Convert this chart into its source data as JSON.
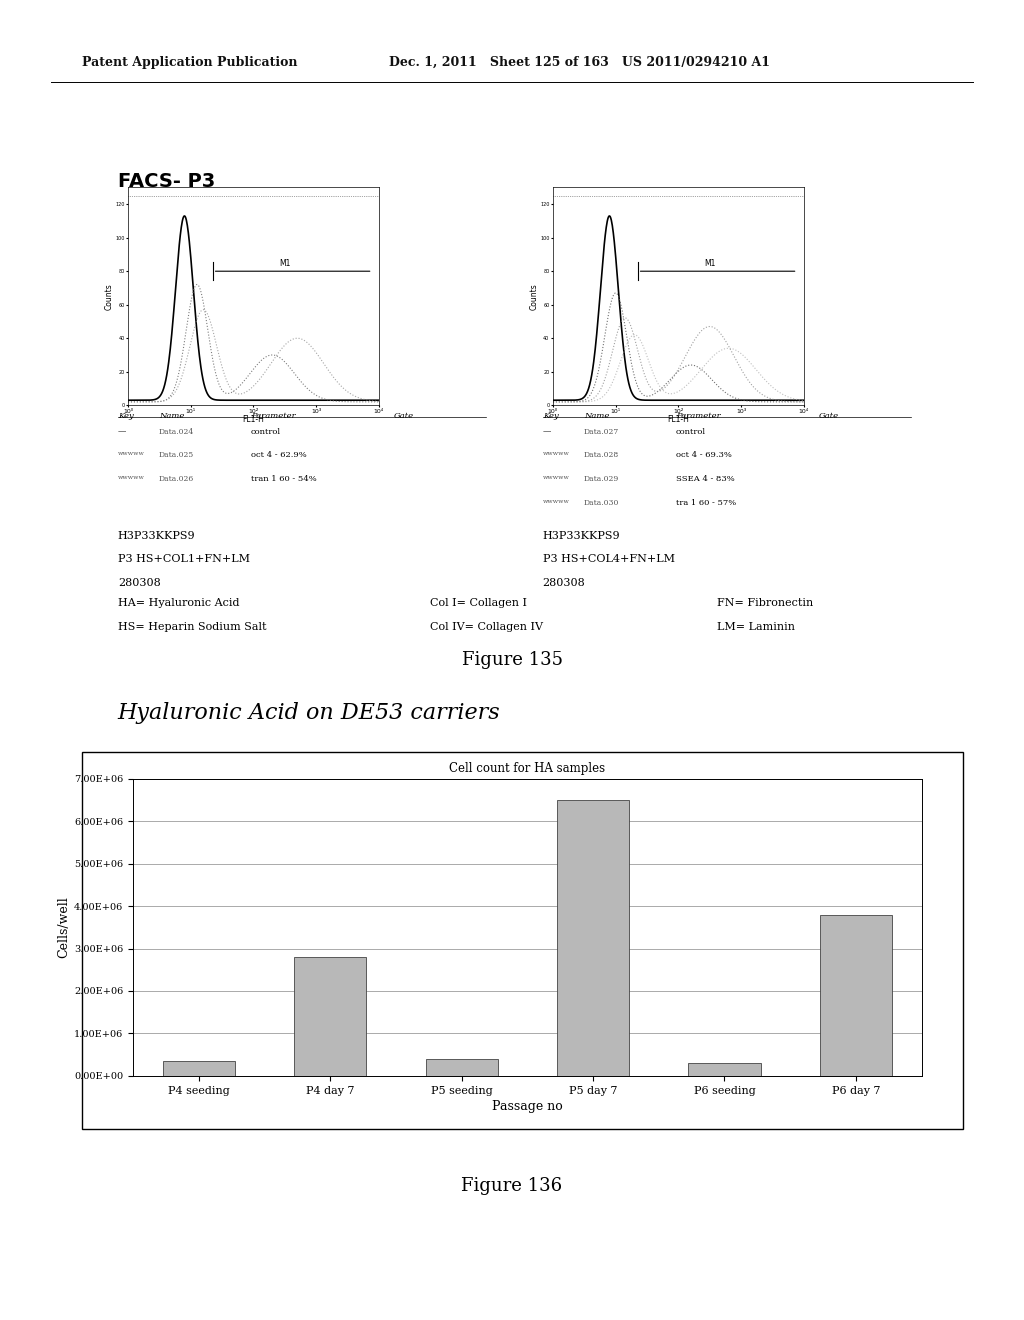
{
  "page_header_left": "Patent Application Publication",
  "page_header_mid": "Dec. 1, 2011   Sheet 125 of 163   US 2011/0294210 A1",
  "facs_title": "FACS- P3",
  "figure135_caption": "Figure 135",
  "figure136_caption": "Figure 136",
  "section_title": "Hyaluronic Acid on DE53 carriers",
  "chart_title": "Cell count for HA samples",
  "xlabel": "Passage no",
  "ylabel": "Cells/well",
  "categories": [
    "P4 seeding",
    "P4 day 7",
    "P5 seeding",
    "P5 day 7",
    "P6 seeding",
    "P6 day 7"
  ],
  "values": [
    350000.0,
    2800000.0,
    400000.0,
    6500000.0,
    300000.0,
    3800000.0
  ],
  "ylim": [
    0,
    7000000.0
  ],
  "yticks": [
    0,
    1000000.0,
    2000000.0,
    3000000.0,
    4000000.0,
    5000000.0,
    6000000.0,
    7000000.0
  ],
  "ytick_labels": [
    "0.00E+00",
    "1.00E+06",
    "2.00E+06",
    "3.00E+06",
    "4.00E+06",
    "5.00E+06",
    "6.00E+06",
    "7.00E+06"
  ],
  "bar_color": "#b8b8b8",
  "bar_edgecolor": "#444444",
  "background_color": "#ffffff",
  "left_legend_header": "Key    Name          Parameter          Gate",
  "left_legend_rows": [
    [
      "—",
      "Data.024",
      "control"
    ],
    [
      "wwwww",
      "Data.025",
      "oct 4 - 62.9%"
    ],
    [
      "wwwww",
      "Data.026",
      "tran 1 60 - 54%"
    ]
  ],
  "right_legend_header": "Key    Name          Parameter          Gate",
  "right_legend_rows": [
    [
      "—",
      "Data.027",
      "control"
    ],
    [
      "wwwww",
      "Data.028",
      "oct 4 - 69.3%"
    ],
    [
      "wwwww",
      "Data.029",
      "SSEA 4 - 83%"
    ],
    [
      "wwwww",
      "Data.030",
      "tra 1 60 - 57%"
    ]
  ],
  "left_annotation": [
    "H3P33KKPS9",
    "P3 HS+COL1+FN+LM",
    "280308"
  ],
  "right_annotation": [
    "H3P33KKPS9",
    "P3 HS+COL4+FN+LM",
    "280308"
  ],
  "bottom_annotation_col1": [
    "HA= Hyaluronic Acid",
    "HS= Heparin Sodium Salt"
  ],
  "bottom_annotation_col2": [
    "Col I= Collagen I",
    "Col IV= Collagen IV"
  ],
  "bottom_annotation_col3": [
    "FN= Fibronectin",
    "LM= Laminin"
  ]
}
